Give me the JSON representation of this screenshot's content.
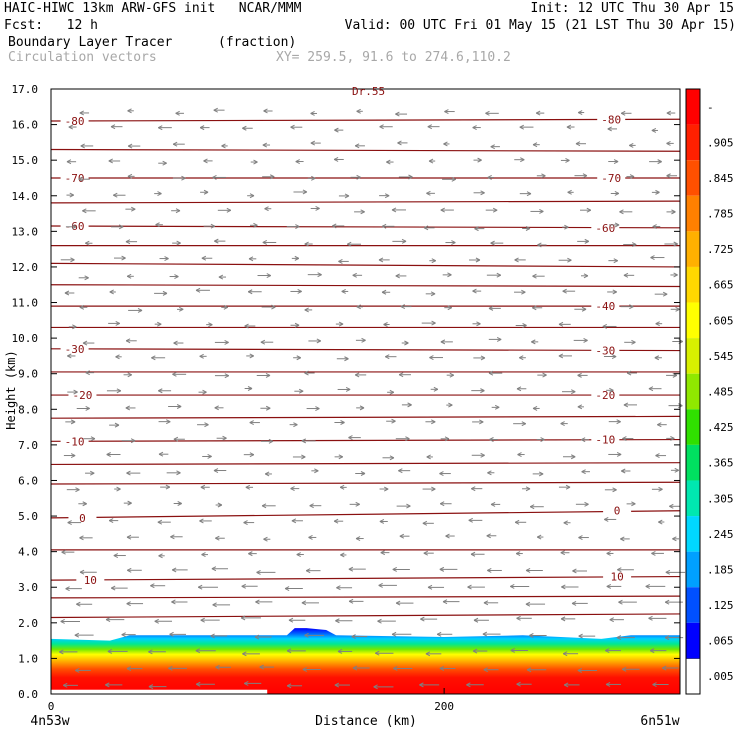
{
  "header": {
    "line1_left": "HAIC-HIWC 13km ARW-GFS init   NCAR/MMM",
    "line1_right": "Init: 12 UTC Thu 30 Apr 15",
    "line2_left": "Fcst:   12 h",
    "line2_right": "Valid: 00 UTC Fri 01 May 15 (21 LST Thu 30 Apr 15)",
    "line3_left": "Boundary Layer Tracer",
    "line3_mid": "(fraction)",
    "line4_left": "Circulation vectors",
    "line4_mid": "XY= 259.5, 91.6 to 274.6,110.2"
  },
  "top_label": "Dr.55",
  "colors": {
    "contour": "#8a1010",
    "vector": "#808080",
    "frame": "#000000",
    "colorbar": [
      "#0000ff",
      "#0050ff",
      "#00a0ff",
      "#00d8ff",
      "#00e8b0",
      "#00e060",
      "#30e000",
      "#90e800",
      "#d8f000",
      "#ffff00",
      "#ffd800",
      "#ffb000",
      "#ff8000",
      "#ff5000",
      "#ff2000",
      "#ff0000"
    ]
  },
  "chart_data": {
    "type": "vertical cross-section",
    "xlabel": "Distance (km)",
    "ylabel": "Height (km)",
    "xlim": [
      0,
      320
    ],
    "ylim": [
      0,
      17
    ],
    "x_ticks": [
      {
        "v": 0,
        "label": "0"
      },
      {
        "v": 200,
        "label": "200"
      }
    ],
    "x_end_labels": {
      "left": "4n53w",
      "right": "6n51w"
    },
    "y_ticks": [
      "0.0",
      "1.0",
      "2.0",
      "3.0",
      "4.0",
      "5.0",
      "6.0",
      "7.0",
      "8.0",
      "9.0",
      "10.0",
      "11.0",
      "12.0",
      "13.0",
      "14.0",
      "15.0",
      "16.0",
      "17.0"
    ],
    "colorbar_labels": [
      "-",
      ".905",
      ".845",
      ".785",
      ".725",
      ".665",
      ".605",
      ".545",
      ".485",
      ".425",
      ".365",
      ".305",
      ".245",
      ".185",
      ".125",
      ".065",
      ".005"
    ],
    "contour_lines": [
      {
        "label": "-80",
        "y": [
          16.1,
          16.15
        ]
      },
      {
        "label": "",
        "y": [
          15.3,
          15.25
        ]
      },
      {
        "label": "-70",
        "y": [
          14.5,
          14.5
        ]
      },
      {
        "label": "",
        "y": [
          13.8,
          13.85
        ]
      },
      {
        "label": "-60",
        "y": [
          13.15,
          13.1
        ]
      },
      {
        "label": "",
        "y": [
          12.6,
          12.6
        ]
      },
      {
        "label": "",
        "y": [
          12.1,
          12.0
        ]
      },
      {
        "label": "",
        "y": [
          11.5,
          11.45
        ]
      },
      {
        "label": "-40",
        "y": [
          10.9,
          10.9
        ]
      },
      {
        "label": "",
        "y": [
          10.3,
          10.3
        ]
      },
      {
        "label": "-30",
        "y": [
          9.7,
          9.65
        ]
      },
      {
        "label": "",
        "y": [
          9.05,
          9.05
        ]
      },
      {
        "label": "-20",
        "y": [
          8.4,
          8.4
        ]
      },
      {
        "label": "",
        "y": [
          7.75,
          7.8
        ]
      },
      {
        "label": "-10",
        "y": [
          7.1,
          7.15
        ]
      },
      {
        "label": "",
        "y": [
          6.45,
          6.5
        ]
      },
      {
        "label": "",
        "y": [
          5.9,
          5.95
        ]
      },
      {
        "label": "0",
        "y": [
          4.95,
          5.15
        ]
      },
      {
        "label": "",
        "y": [
          4.05,
          4.05
        ]
      },
      {
        "label": "10",
        "y": [
          3.2,
          3.3
        ]
      },
      {
        "label": "",
        "y": [
          2.7,
          2.75
        ]
      },
      {
        "label": "",
        "y": [
          2.15,
          2.25
        ]
      }
    ],
    "contour_label_marks": [
      {
        "text": "-80",
        "x": 12,
        "y": 16.1
      },
      {
        "text": "-80",
        "x": 285,
        "y": 16.15
      },
      {
        "text": "-70",
        "x": 12,
        "y": 14.5
      },
      {
        "text": "-70",
        "x": 285,
        "y": 14.5
      },
      {
        "text": "-60",
        "x": 12,
        "y": 13.15
      },
      {
        "text": "-60",
        "x": 282,
        "y": 13.1
      },
      {
        "text": "-40",
        "x": 282,
        "y": 10.9
      },
      {
        "text": "-30",
        "x": 12,
        "y": 9.7
      },
      {
        "text": "-30",
        "x": 282,
        "y": 9.65
      },
      {
        "text": "-20",
        "x": 16,
        "y": 8.4
      },
      {
        "text": "-20",
        "x": 282,
        "y": 8.4
      },
      {
        "text": "-10",
        "x": 12,
        "y": 7.1
      },
      {
        "text": "-10",
        "x": 282,
        "y": 7.15
      },
      {
        "text": "0",
        "x": 16,
        "y": 4.95
      },
      {
        "text": "0",
        "x": 288,
        "y": 5.15
      },
      {
        "text": "10",
        "x": 20,
        "y": 3.2
      },
      {
        "text": "10",
        "x": 288,
        "y": 3.3
      }
    ],
    "tracer_profile": {
      "x": [
        0,
        30,
        40,
        120,
        124,
        130,
        140,
        145,
        200,
        240,
        280,
        295,
        320
      ],
      "top_km": [
        1.55,
        1.5,
        1.65,
        1.65,
        1.85,
        1.85,
        1.8,
        1.65,
        1.6,
        1.65,
        1.55,
        1.65,
        1.65
      ]
    }
  }
}
